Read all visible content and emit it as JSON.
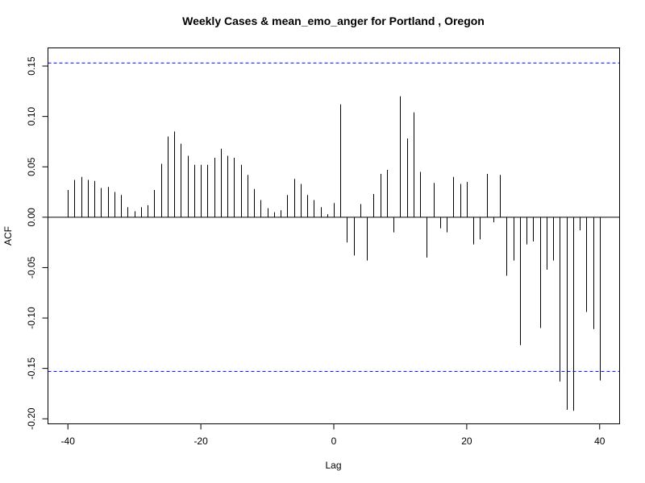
{
  "chart_data": {
    "type": "bar",
    "title": "Weekly Cases & mean_emo_anger for Portland , Oregon",
    "xlabel": "Lag",
    "ylabel": "ACF",
    "xlim": [
      -43,
      43
    ],
    "ylim": [
      -0.205,
      0.168
    ],
    "x_ticks": [
      -40,
      -20,
      0,
      20,
      40
    ],
    "x_tick_labels": [
      "-40",
      "-20",
      "0",
      "20",
      "40"
    ],
    "y_ticks": [
      -0.2,
      -0.15,
      -0.1,
      -0.05,
      0.0,
      0.05,
      0.1,
      0.15
    ],
    "y_tick_labels": [
      "-0.20",
      "-0.15",
      "-0.10",
      "-0.05",
      "0.00",
      "0.05",
      "0.10",
      "0.15"
    ],
    "confidence_bound": 0.153,
    "colors": {
      "lines": "#000000",
      "confidence": "#0000ff"
    },
    "grid": false,
    "lags": [
      -40,
      -39,
      -38,
      -37,
      -36,
      -35,
      -34,
      -33,
      -32,
      -31,
      -30,
      -29,
      -28,
      -27,
      -26,
      -25,
      -24,
      -23,
      -22,
      -21,
      -20,
      -19,
      -18,
      -17,
      -16,
      -15,
      -14,
      -13,
      -12,
      -11,
      -10,
      -9,
      -8,
      -7,
      -6,
      -5,
      -4,
      -3,
      -2,
      -1,
      0,
      1,
      2,
      3,
      4,
      5,
      6,
      7,
      8,
      9,
      10,
      11,
      12,
      13,
      14,
      15,
      16,
      17,
      18,
      19,
      20,
      21,
      22,
      23,
      24,
      25,
      26,
      27,
      28,
      29,
      30,
      31,
      32,
      33,
      34,
      35,
      36,
      37,
      38,
      39,
      40
    ],
    "values": [
      0.027,
      0.037,
      0.04,
      0.037,
      0.036,
      0.029,
      0.03,
      0.025,
      0.022,
      0.01,
      0.006,
      0.01,
      0.012,
      0.027,
      0.053,
      0.08,
      0.085,
      0.073,
      0.061,
      0.052,
      0.052,
      0.052,
      0.059,
      0.068,
      0.061,
      0.059,
      0.052,
      0.042,
      0.028,
      0.017,
      0.009,
      0.005,
      0.007,
      0.022,
      0.038,
      0.033,
      0.022,
      0.017,
      0.01,
      0.003,
      0.014,
      0.112,
      -0.025,
      -0.038,
      0.013,
      -0.043,
      0.023,
      0.043,
      0.047,
      -0.015,
      0.12,
      0.078,
      0.104,
      0.045,
      -0.04,
      0.034,
      -0.011,
      -0.015,
      0.04,
      0.033,
      0.035,
      -0.027,
      -0.022,
      0.043,
      -0.005,
      0.042,
      -0.058,
      -0.043,
      -0.127,
      -0.027,
      -0.024,
      -0.11,
      -0.052,
      -0.043,
      -0.163,
      -0.191,
      -0.192,
      -0.013,
      -0.094,
      -0.111,
      -0.162
    ]
  }
}
